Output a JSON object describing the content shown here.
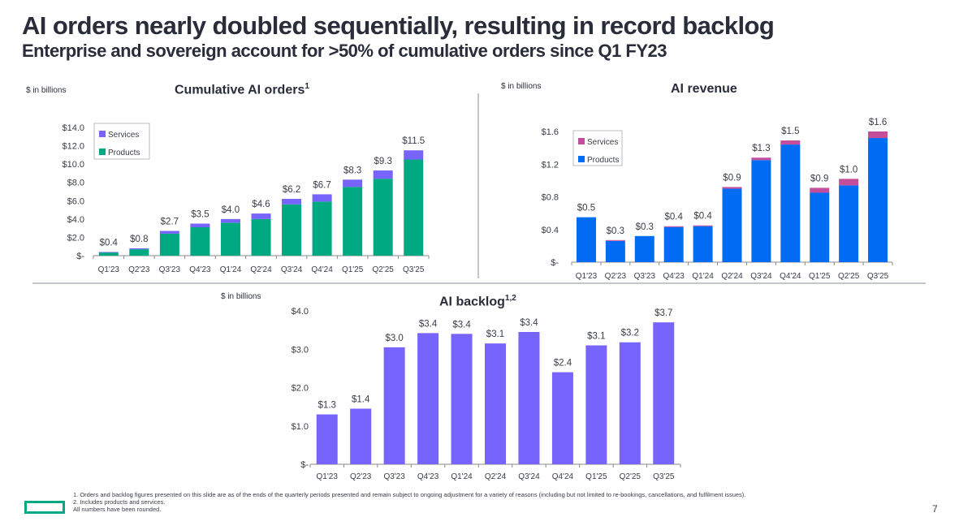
{
  "title": "AI orders nearly doubled sequentially, resulting in record backlog",
  "subtitle": "Enterprise and sovereign account for >50% of cumulative orders since Q1 FY23",
  "page_number": "7",
  "footnotes": [
    "1.  Orders and backlog figures presented on this slide are as of the ends of the quarterly periods presented and remain subject to ongoing adjustment for a variety of reasons (including but not limited to re-bookings, cancellations, and fulfilment issues).",
    "2.  Includes products and services.",
    "All numbers have been rounded."
  ],
  "colors": {
    "orders_products": "#01a982",
    "orders_services": "#7764fc",
    "revenue_products": "#006cf3",
    "revenue_services": "#c54e9c",
    "backlog": "#7764fc",
    "brand_green": "#01a982"
  },
  "chart_data": [
    {
      "id": "orders",
      "type": "bar",
      "stacked": true,
      "title": "Cumulative AI orders",
      "title_sup": "1",
      "unit_label": "$ in billions",
      "xlabel": "",
      "ylabel": "",
      "ylim": [
        0,
        14
      ],
      "yticks": [
        0,
        2,
        4,
        6,
        8,
        10,
        12,
        14
      ],
      "ytick_labels": [
        "$-",
        "$2.0",
        "$4.0",
        "$6.0",
        "$8.0",
        "$10.0",
        "$12.0",
        "$14.0"
      ],
      "grid": false,
      "legend": "top-left",
      "categories": [
        "Q1'23",
        "Q2'23",
        "Q3'23",
        "Q4'23",
        "Q1'24",
        "Q2'24",
        "Q3'24",
        "Q4'24",
        "Q1'25",
        "Q2'25",
        "Q3'25"
      ],
      "series": [
        {
          "name": "Products",
          "color_key": "orders_products",
          "values": [
            0.35,
            0.7,
            2.4,
            3.1,
            3.6,
            4.0,
            5.6,
            5.9,
            7.5,
            8.4,
            10.5
          ]
        },
        {
          "name": "Services",
          "color_key": "orders_services",
          "values": [
            0.05,
            0.1,
            0.3,
            0.4,
            0.4,
            0.6,
            0.6,
            0.8,
            0.8,
            0.9,
            1.0
          ]
        }
      ],
      "totals": [
        0.4,
        0.8,
        2.7,
        3.5,
        4.0,
        4.6,
        6.2,
        6.7,
        8.3,
        9.3,
        11.5
      ],
      "data_labels": [
        "$0.4",
        "$0.8",
        "$2.7",
        "$3.5",
        "$4.0",
        "$4.6",
        "$6.2",
        "$6.7",
        "$8.3",
        "$9.3",
        "$11.5"
      ],
      "legend_entries": [
        "Services",
        "Products"
      ]
    },
    {
      "id": "revenue",
      "type": "bar",
      "stacked": true,
      "title": "AI revenue",
      "title_sup": "",
      "unit_label": "$ in billions",
      "xlabel": "",
      "ylabel": "",
      "ylim": [
        0,
        1.6
      ],
      "yticks": [
        0,
        0.4,
        0.8,
        1.2,
        1.6
      ],
      "ytick_labels": [
        "$-",
        "$0.4",
        "$0.8",
        "$1.2",
        "$1.6"
      ],
      "grid": false,
      "legend": "top-left",
      "categories": [
        "Q1'23",
        "Q2'23",
        "Q3'23",
        "Q4'23",
        "Q1'24",
        "Q2'24",
        "Q3'24",
        "Q4'24",
        "Q1'25",
        "Q2'25",
        "Q3'25"
      ],
      "series": [
        {
          "name": "Products",
          "color_key": "revenue_products",
          "values": [
            0.55,
            0.26,
            0.32,
            0.43,
            0.44,
            0.9,
            1.25,
            1.44,
            0.85,
            0.94,
            1.52
          ]
        },
        {
          "name": "Services",
          "color_key": "revenue_services",
          "values": [
            0.0,
            0.01,
            0.0,
            0.01,
            0.01,
            0.02,
            0.03,
            0.05,
            0.06,
            0.08,
            0.08
          ]
        }
      ],
      "totals": [
        0.5,
        0.3,
        0.3,
        0.4,
        0.4,
        0.9,
        1.3,
        1.5,
        0.9,
        1.0,
        1.6
      ],
      "data_labels": [
        "$0.5",
        "$0.3",
        "$0.3",
        "$0.4",
        "$0.4",
        "$0.9",
        "$1.3",
        "$1.5",
        "$0.9",
        "$1.0",
        "$1.6"
      ],
      "legend_entries": [
        "Services",
        "Products"
      ]
    },
    {
      "id": "backlog",
      "type": "bar",
      "stacked": false,
      "title": "AI backlog",
      "title_sup": "1,2",
      "unit_label": "$ in billions",
      "xlabel": "",
      "ylabel": "",
      "ylim": [
        0,
        4
      ],
      "yticks": [
        0,
        1,
        2,
        3,
        4
      ],
      "ytick_labels": [
        "$-",
        "$1.0",
        "$2.0",
        "$3.0",
        "$4.0"
      ],
      "grid": false,
      "legend": "none",
      "categories": [
        "Q1'23",
        "Q2'23",
        "Q3'23",
        "Q4'23",
        "Q1'24",
        "Q2'24",
        "Q3'24",
        "Q4'24",
        "Q1'25",
        "Q2'25",
        "Q3'25"
      ],
      "series": [
        {
          "name": "Backlog",
          "color_key": "backlog",
          "values": [
            1.3,
            1.45,
            3.05,
            3.42,
            3.4,
            3.15,
            3.45,
            2.4,
            3.1,
            3.18,
            3.7
          ]
        }
      ],
      "data_labels": [
        "$1.3",
        "$1.4",
        "$3.0",
        "$3.4",
        "$3.4",
        "$3.1",
        "$3.4",
        "$2.4",
        "$3.1",
        "$3.2",
        "$3.7"
      ]
    }
  ]
}
